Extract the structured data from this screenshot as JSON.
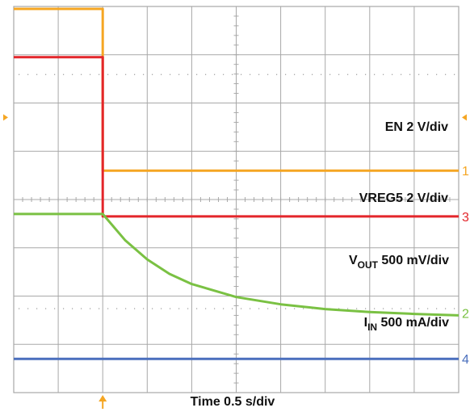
{
  "chart_data": {
    "type": "line",
    "title": "",
    "xlabel": "Time 0.5 s/div",
    "ylabel": "",
    "grid": true,
    "grid_divisions": {
      "x": 10,
      "y": 8
    },
    "xlim": [
      0,
      10
    ],
    "ylim": [
      0,
      8
    ],
    "trigger_x": 2.0,
    "colors": {
      "ch1": "#f5a623",
      "ch2": "#7ac143",
      "ch3": "#e3262b",
      "ch4": "#4a6fbd",
      "grid": "#a8a8a8",
      "marker": "#f5a623"
    },
    "series": [
      {
        "channel": "1",
        "label": "EN 2 V/div",
        "color": "#f5a623",
        "marker_level": 4.6,
        "points": [
          [
            0,
            7.95
          ],
          [
            2.0,
            7.95
          ],
          [
            2.0,
            4.6
          ],
          [
            10,
            4.6
          ]
        ]
      },
      {
        "channel": "3",
        "label_main": "VREG5 2 V/div",
        "color": "#e3262b",
        "marker_level": 3.65,
        "points": [
          [
            0,
            6.95
          ],
          [
            2.0,
            6.95
          ],
          [
            2.0,
            3.65
          ],
          [
            10,
            3.65
          ]
        ]
      },
      {
        "channel": "2",
        "label_main": "V",
        "label_sub": "OUT",
        "label_rest": " 500 mV/div",
        "color": "#7ac143",
        "marker_level": 1.65,
        "points": [
          [
            0,
            3.7
          ],
          [
            2.0,
            3.7
          ],
          [
            2.5,
            3.16
          ],
          [
            3.0,
            2.76
          ],
          [
            3.5,
            2.46
          ],
          [
            4.0,
            2.25
          ],
          [
            5.0,
            1.98
          ],
          [
            6.0,
            1.83
          ],
          [
            7.0,
            1.73
          ],
          [
            8.0,
            1.67
          ],
          [
            9.0,
            1.63
          ],
          [
            10,
            1.6
          ]
        ]
      },
      {
        "channel": "4",
        "label_main": "I",
        "label_sub": "IN",
        "label_rest": " 500 mA/div",
        "color": "#4a6fbd",
        "marker_level": 0.7,
        "points": [
          [
            0,
            0.7
          ],
          [
            10,
            0.7
          ]
        ]
      }
    ]
  }
}
